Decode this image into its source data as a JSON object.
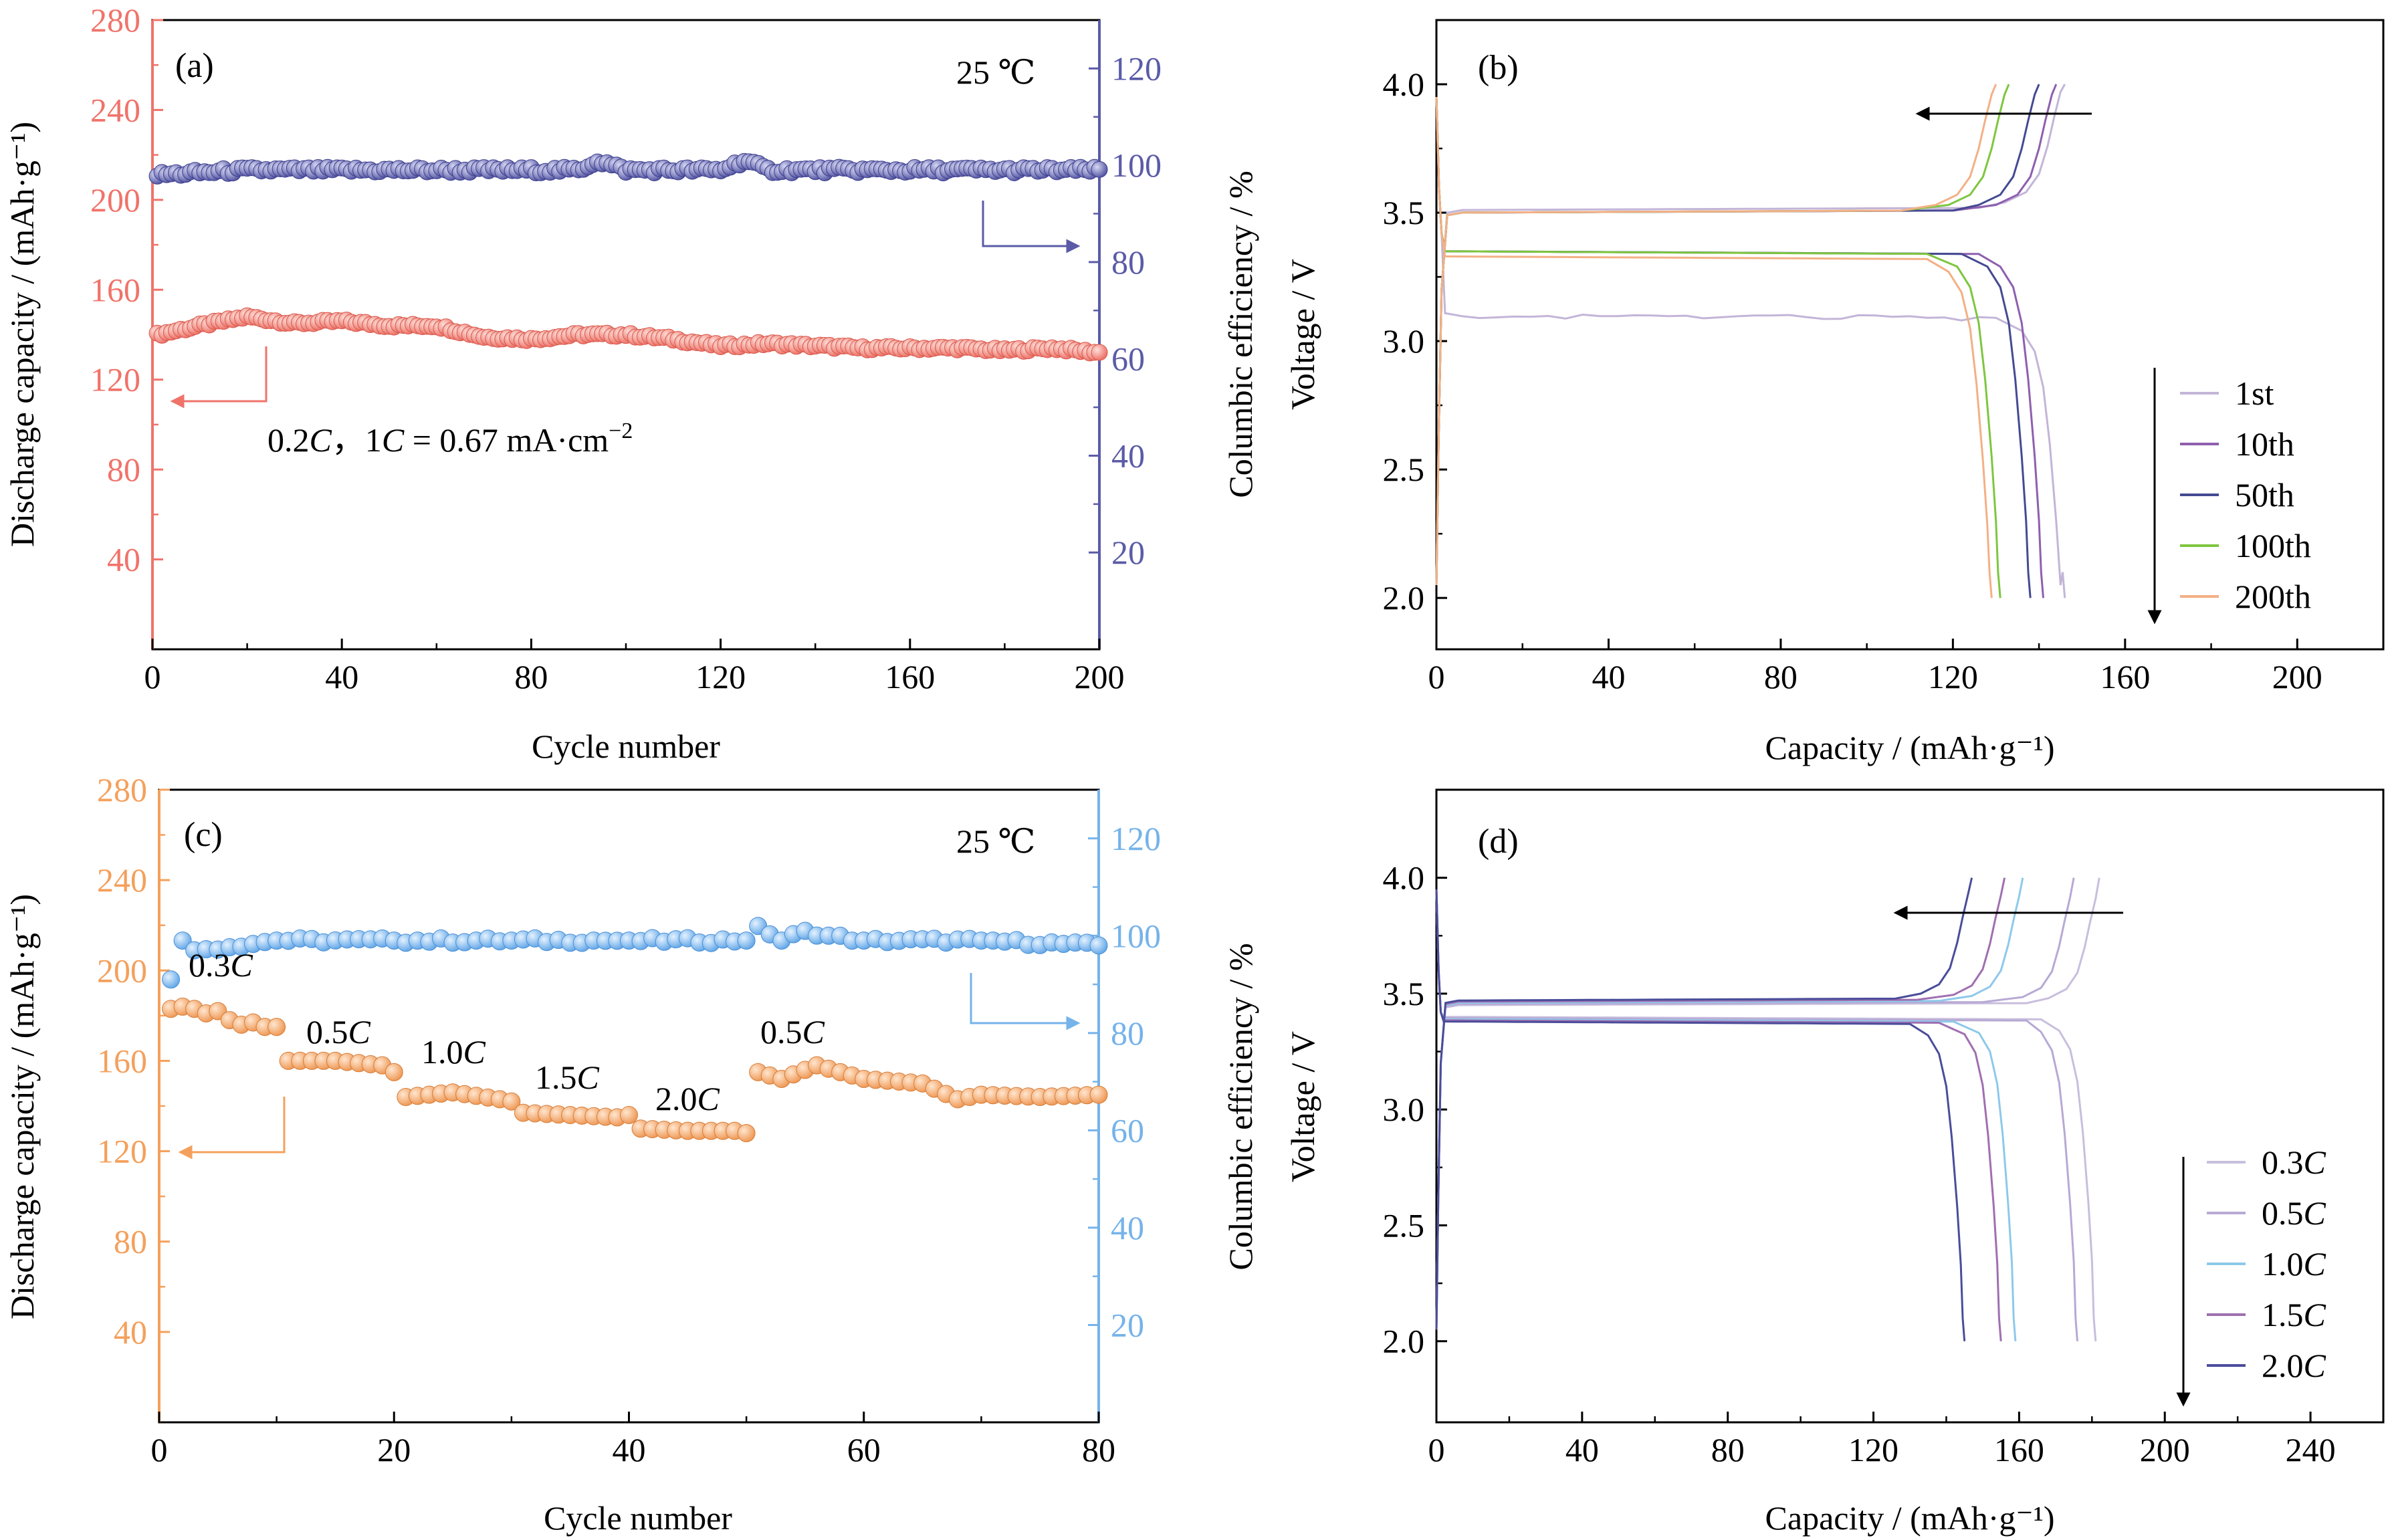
{
  "chart_data": [
    {
      "panel": "(a)",
      "type": "scatter",
      "xlabel": "Cycle number",
      "ylabel": "Discharge capacity / (mAh·g⁻¹)",
      "y2label": "Columbic efficiency / %",
      "xlim": [
        0,
        200
      ],
      "ylim": [
        0,
        280
      ],
      "y2lim": [
        0,
        130
      ],
      "xticks": [
        "0",
        "40",
        "80",
        "120",
        "160",
        "200"
      ],
      "yticks": [
        "40",
        "80",
        "120",
        "160",
        "200",
        "240",
        "280"
      ],
      "y2ticks": [
        "20",
        "40",
        "60",
        "80",
        "100",
        "120"
      ],
      "left_color": "#f0736a",
      "right_color": "#5b5ba8",
      "annotations": {
        "temp": "25 ℃",
        "rate_a": "0.2",
        "rate_b": "C",
        "rate_c": "，1",
        "rate_d": "C",
        "rate_e": " = 0.67 mA·cm",
        "rate_sup": "−2"
      },
      "series": [
        {
          "axis": "left",
          "x": [
            1,
            10,
            20,
            30,
            40,
            50,
            60,
            70,
            80,
            90,
            100,
            110,
            120,
            130,
            140,
            150,
            160,
            170,
            180,
            190,
            200
          ],
          "values": [
            140,
            144,
            148,
            145,
            146,
            144,
            144,
            139,
            138,
            140,
            140,
            138,
            135,
            136,
            135,
            134,
            134,
            134,
            133,
            134,
            132
          ]
        },
        {
          "axis": "right",
          "x": [
            1,
            20,
            40,
            60,
            80,
            90,
            94,
            100,
            120,
            125,
            130,
            140,
            160,
            180,
            200
          ],
          "values": [
            98,
            99,
            99,
            99,
            99,
            99,
            101,
            99,
            99,
            101,
            99,
            99,
            99,
            99,
            99
          ]
        }
      ]
    },
    {
      "panel": "(b)",
      "type": "line",
      "xlabel": "Capacity / (mAh·g⁻¹)",
      "ylabel": "Voltage / V",
      "xlim": [
        0,
        220
      ],
      "ylim": [
        1.8,
        4.25
      ],
      "xticks": [
        "0",
        "40",
        "80",
        "120",
        "160",
        "200"
      ],
      "yticks": [
        "2.0",
        "2.5",
        "3.0",
        "3.5",
        "4.0"
      ],
      "series": [
        {
          "name": "1st",
          "color": "#c3b5d8",
          "discharge_capacity": 146,
          "charge_capacity": 146,
          "discharge_plateau": 3.1,
          "charge_plateau": 3.51
        },
        {
          "name": "10th",
          "color": "#8e5fae",
          "discharge_capacity": 141,
          "charge_capacity": 144,
          "discharge_plateau": 3.35,
          "charge_plateau": 3.5
        },
        {
          "name": "50th",
          "color": "#454a92",
          "discharge_capacity": 138,
          "charge_capacity": 140,
          "discharge_plateau": 3.35,
          "charge_plateau": 3.5
        },
        {
          "name": "100th",
          "color": "#7ec63f",
          "discharge_capacity": 131,
          "charge_capacity": 133,
          "discharge_plateau": 3.35,
          "charge_plateau": 3.5
        },
        {
          "name": "200th",
          "color": "#f3b085",
          "discharge_capacity": 129,
          "charge_capacity": 130,
          "discharge_plateau": 3.33,
          "charge_plateau": 3.5
        }
      ]
    },
    {
      "panel": "(c)",
      "type": "scatter",
      "xlabel": "Cycle number",
      "ylabel": "Discharge capacity / (mAh·g⁻¹)",
      "y2label": "Columbic efficiency / %",
      "xlim": [
        0,
        80
      ],
      "ylim": [
        0,
        280
      ],
      "y2lim": [
        0,
        130
      ],
      "xticks": [
        "0",
        "20",
        "40",
        "60",
        "80"
      ],
      "yticks": [
        "40",
        "80",
        "120",
        "160",
        "200",
        "240",
        "280"
      ],
      "y2ticks": [
        "20",
        "40",
        "60",
        "80",
        "100",
        "120"
      ],
      "left_color": "#f4a05c",
      "right_color": "#75b3ea",
      "annotations": {
        "temp": "25 ℃"
      },
      "rate_labels": [
        {
          "num": "0.3",
          "unit": "C"
        },
        {
          "num": "0.5",
          "unit": "C"
        },
        {
          "num": "1.0",
          "unit": "C"
        },
        {
          "num": "1.5",
          "unit": "C"
        },
        {
          "num": "2.0",
          "unit": "C"
        },
        {
          "num": "0.5",
          "unit": "C"
        }
      ],
      "series": [
        {
          "axis": "left",
          "x": [
            1,
            2,
            3,
            4,
            5,
            6,
            7,
            8,
            9,
            10,
            11,
            15,
            19,
            20,
            21,
            25,
            29,
            30,
            31,
            35,
            39,
            40,
            41,
            45,
            49,
            50,
            51,
            53,
            56,
            60,
            65,
            68,
            70,
            75,
            80
          ],
          "values": [
            183,
            184,
            183,
            181,
            182,
            178,
            176,
            177,
            175,
            175,
            160,
            160,
            158,
            155,
            144,
            146,
            143,
            142,
            137,
            136,
            135,
            136,
            130,
            129,
            129,
            128,
            155,
            152,
            158,
            152,
            150,
            143,
            145,
            144,
            145
          ]
        },
        {
          "axis": "right",
          "x": [
            1,
            2,
            3,
            10,
            20,
            30,
            40,
            50,
            51,
            53,
            55,
            57,
            60,
            70,
            80
          ],
          "values": [
            91,
            99,
            97,
            99,
            99,
            99,
            99,
            99,
            102,
            99,
            101,
            100,
            99,
            99,
            98
          ]
        }
      ]
    },
    {
      "panel": "(d)",
      "type": "line",
      "xlabel": "Capacity / (mAh·g⁻¹)",
      "ylabel": "Voltage / V",
      "xlim": [
        0,
        260
      ],
      "ylim": [
        1.65,
        4.38
      ],
      "xticks": [
        "0",
        "40",
        "80",
        "120",
        "160",
        "200",
        "240"
      ],
      "yticks": [
        "2.0",
        "2.5",
        "3.0",
        "3.5",
        "4.0"
      ],
      "series": [
        {
          "name": "0.3",
          "unit": "C",
          "color": "#c8bedd",
          "discharge_capacity": 181,
          "charge_capacity": 182
        },
        {
          "name": "0.5",
          "unit": "C",
          "color": "#b7a9d4",
          "discharge_capacity": 176,
          "charge_capacity": 175
        },
        {
          "name": "1.0",
          "unit": "C",
          "color": "#8ec9ea",
          "discharge_capacity": 159,
          "charge_capacity": 161
        },
        {
          "name": "1.5",
          "unit": "C",
          "color": "#a06fb0",
          "discharge_capacity": 155,
          "charge_capacity": 156
        },
        {
          "name": "2.0",
          "unit": "C",
          "color": "#4a4d9a",
          "discharge_capacity": 145,
          "charge_capacity": 147
        }
      ]
    }
  ]
}
